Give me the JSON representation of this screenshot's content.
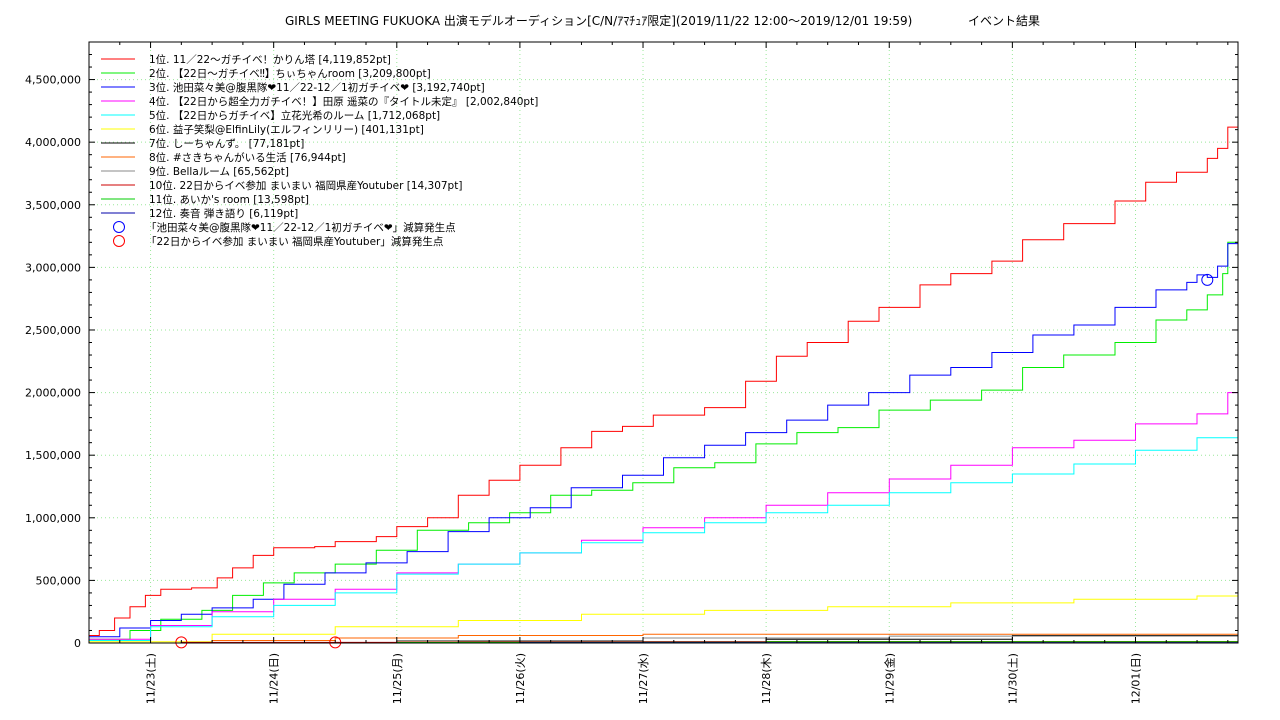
{
  "chart_data": {
    "type": "line",
    "title": "GIRLS MEETING FUKUOKA 出演モデルオーディション[C/N/ｱﾏﾁｭｱ限定](2019/11/22 12:00～2019/12/01 19:59)",
    "subtitle": "イベント結果",
    "xlabel": "",
    "ylabel": "",
    "x_start": "2019-11-22 12:00",
    "x_end": "2019-12-01 19:59",
    "x_ticks": [
      "11/23(土)",
      "11/24(日)",
      "11/25(月)",
      "11/26(火)",
      "11/27(水)",
      "11/28(木)",
      "11/29(金)",
      "11/30(土)",
      "12/01(日)"
    ],
    "ylim": [
      0,
      4800000
    ],
    "y_ticks": [
      "0",
      "500,000",
      "1,000,000",
      "1,500,000",
      "2,000,000",
      "2,500,000",
      "3,000,000",
      "3,500,000",
      "4,000,000",
      "4,500,000"
    ],
    "y_tick_values": [
      0,
      500000,
      1000000,
      1500000,
      2000000,
      2500000,
      3000000,
      3500000,
      4000000,
      4500000
    ],
    "grid": true,
    "legend_position": "top-left",
    "series": [
      {
        "name": "1位. 11／22～ガチイベ！かりん塔 [4,119,852pt]",
        "color": "#ff0000",
        "points": [
          [
            "11/22 12:00",
            60000
          ],
          [
            "11/22 14:00",
            100000
          ],
          [
            "11/22 17:00",
            200000
          ],
          [
            "11/22 20:00",
            290000
          ],
          [
            "11/22 23:00",
            380000
          ],
          [
            "11/23 02:00",
            430000
          ],
          [
            "11/23 08:00",
            440000
          ],
          [
            "11/23 13:00",
            520000
          ],
          [
            "11/23 16:00",
            600000
          ],
          [
            "11/23 20:00",
            700000
          ],
          [
            "11/24 00:00",
            760000
          ],
          [
            "11/24 08:00",
            770000
          ],
          [
            "11/24 12:00",
            810000
          ],
          [
            "11/24 20:00",
            850000
          ],
          [
            "11/25 00:00",
            930000
          ],
          [
            "11/25 06:00",
            1000000
          ],
          [
            "11/25 12:00",
            1180000
          ],
          [
            "11/25 18:00",
            1300000
          ],
          [
            "11/26 00:00",
            1420000
          ],
          [
            "11/26 08:00",
            1560000
          ],
          [
            "11/26 14:00",
            1690000
          ],
          [
            "11/26 20:00",
            1730000
          ],
          [
            "11/27 02:00",
            1820000
          ],
          [
            "11/27 12:00",
            1880000
          ],
          [
            "11/27 20:00",
            2090000
          ],
          [
            "11/28 02:00",
            2290000
          ],
          [
            "11/28 08:00",
            2400000
          ],
          [
            "11/28 16:00",
            2570000
          ],
          [
            "11/28 22:00",
            2680000
          ],
          [
            "11/29 06:00",
            2860000
          ],
          [
            "11/29 12:00",
            2950000
          ],
          [
            "11/29 20:00",
            3050000
          ],
          [
            "11/30 02:00",
            3220000
          ],
          [
            "11/30 10:00",
            3350000
          ],
          [
            "11/30 20:00",
            3530000
          ],
          [
            "12/01 02:00",
            3680000
          ],
          [
            "12/01 08:00",
            3760000
          ],
          [
            "12/01 14:00",
            3870000
          ],
          [
            "12/01 16:00",
            3950000
          ],
          [
            "12/01 18:00",
            4120000
          ],
          [
            "12/01 19:59",
            4119852
          ]
        ]
      },
      {
        "name": "2位. 【22日～ガチイベ‼】ちぃちゃんroom [3,209,800pt]",
        "color": "#00ee00",
        "points": [
          [
            "11/22 12:00",
            30000
          ],
          [
            "11/22 20:00",
            100000
          ],
          [
            "11/23 02:00",
            190000
          ],
          [
            "11/23 10:00",
            260000
          ],
          [
            "11/23 16:00",
            380000
          ],
          [
            "11/23 22:00",
            480000
          ],
          [
            "11/24 04:00",
            560000
          ],
          [
            "11/24 12:00",
            630000
          ],
          [
            "11/24 20:00",
            740000
          ],
          [
            "11/25 04:00",
            900000
          ],
          [
            "11/25 14:00",
            960000
          ],
          [
            "11/25 22:00",
            1040000
          ],
          [
            "11/26 06:00",
            1180000
          ],
          [
            "11/26 14:00",
            1220000
          ],
          [
            "11/26 22:00",
            1280000
          ],
          [
            "11/27 06:00",
            1400000
          ],
          [
            "11/27 14:00",
            1440000
          ],
          [
            "11/27 22:00",
            1590000
          ],
          [
            "11/28 06:00",
            1680000
          ],
          [
            "11/28 14:00",
            1720000
          ],
          [
            "11/28 22:00",
            1860000
          ],
          [
            "11/29 08:00",
            1940000
          ],
          [
            "11/29 18:00",
            2020000
          ],
          [
            "11/30 02:00",
            2200000
          ],
          [
            "11/30 10:00",
            2300000
          ],
          [
            "11/30 20:00",
            2400000
          ],
          [
            "12/01 04:00",
            2580000
          ],
          [
            "12/01 10:00",
            2660000
          ],
          [
            "12/01 14:00",
            2780000
          ],
          [
            "12/01 17:00",
            2950000
          ],
          [
            "12/01 18:00",
            3200000
          ],
          [
            "12/01 19:59",
            3209800
          ]
        ]
      },
      {
        "name": "3位. 池田菜々美@腹黒隊❤11／22-12／1初ガチイベ❤ [3,192,740pt]",
        "color": "#0000ff",
        "points": [
          [
            "11/22 12:00",
            50000
          ],
          [
            "11/22 18:00",
            120000
          ],
          [
            "11/23 00:00",
            180000
          ],
          [
            "11/23 06:00",
            230000
          ],
          [
            "11/23 12:00",
            280000
          ],
          [
            "11/23 20:00",
            350000
          ],
          [
            "11/24 02:00",
            470000
          ],
          [
            "11/24 10:00",
            560000
          ],
          [
            "11/24 18:00",
            640000
          ],
          [
            "11/25 02:00",
            730000
          ],
          [
            "11/25 10:00",
            890000
          ],
          [
            "11/25 18:00",
            1000000
          ],
          [
            "11/26 02:00",
            1080000
          ],
          [
            "11/26 10:00",
            1240000
          ],
          [
            "11/26 20:00",
            1340000
          ],
          [
            "11/27 04:00",
            1480000
          ],
          [
            "11/27 12:00",
            1580000
          ],
          [
            "11/27 20:00",
            1680000
          ],
          [
            "11/28 04:00",
            1780000
          ],
          [
            "11/28 12:00",
            1900000
          ],
          [
            "11/28 20:00",
            2000000
          ],
          [
            "11/29 04:00",
            2140000
          ],
          [
            "11/29 12:00",
            2200000
          ],
          [
            "11/29 20:00",
            2320000
          ],
          [
            "11/30 04:00",
            2460000
          ],
          [
            "11/30 12:00",
            2540000
          ],
          [
            "11/30 20:00",
            2680000
          ],
          [
            "12/01 04:00",
            2820000
          ],
          [
            "12/01 10:00",
            2880000
          ],
          [
            "12/01 12:00",
            2940000
          ],
          [
            "12/01 14:00",
            2920000
          ],
          [
            "12/01 16:00",
            3010000
          ],
          [
            "12/01 18:00",
            3190000
          ],
          [
            "12/01 19:59",
            3192740
          ]
        ]
      },
      {
        "name": "4位. 【22日から超全力ガチイベ！】田原 遥菜の『タイトル未定』 [2,002,840pt]",
        "color": "#ff00ff",
        "points": [
          [
            "11/22 12:00",
            30000
          ],
          [
            "11/23 00:00",
            140000
          ],
          [
            "11/23 12:00",
            250000
          ],
          [
            "11/24 00:00",
            350000
          ],
          [
            "11/24 12:00",
            430000
          ],
          [
            "11/25 00:00",
            560000
          ],
          [
            "11/25 12:00",
            630000
          ],
          [
            "11/26 00:00",
            720000
          ],
          [
            "11/26 12:00",
            820000
          ],
          [
            "11/27 00:00",
            920000
          ],
          [
            "11/27 12:00",
            1000000
          ],
          [
            "11/28 00:00",
            1100000
          ],
          [
            "11/28 12:00",
            1200000
          ],
          [
            "11/29 00:00",
            1310000
          ],
          [
            "11/29 12:00",
            1420000
          ],
          [
            "11/30 00:00",
            1560000
          ],
          [
            "11/30 12:00",
            1620000
          ],
          [
            "12/01 00:00",
            1750000
          ],
          [
            "12/01 12:00",
            1830000
          ],
          [
            "12/01 18:00",
            2000000
          ],
          [
            "12/01 19:59",
            2002840
          ]
        ]
      },
      {
        "name": "5位. 【22日からガチイベ】立花光希のルーム [1,712,068pt]",
        "color": "#00ffff",
        "points": [
          [
            "11/22 12:00",
            20000
          ],
          [
            "11/23 00:00",
            130000
          ],
          [
            "11/23 12:00",
            210000
          ],
          [
            "11/24 00:00",
            300000
          ],
          [
            "11/24 12:00",
            400000
          ],
          [
            "11/25 00:00",
            550000
          ],
          [
            "11/25 12:00",
            630000
          ],
          [
            "11/26 00:00",
            720000
          ],
          [
            "11/26 12:00",
            800000
          ],
          [
            "11/27 00:00",
            880000
          ],
          [
            "11/27 12:00",
            960000
          ],
          [
            "11/28 00:00",
            1040000
          ],
          [
            "11/28 12:00",
            1100000
          ],
          [
            "11/29 00:00",
            1200000
          ],
          [
            "11/29 12:00",
            1280000
          ],
          [
            "11/30 00:00",
            1350000
          ],
          [
            "11/30 12:00",
            1430000
          ],
          [
            "12/01 00:00",
            1540000
          ],
          [
            "12/01 12:00",
            1640000
          ],
          [
            "12/01 19:59",
            1712068
          ]
        ]
      },
      {
        "name": "6位. 益子笑梨@ElfinLily(エルフィンリリー) [401,131pt]",
        "color": "#ffff00",
        "points": [
          [
            "11/22 12:00",
            10000
          ],
          [
            "11/23 12:00",
            70000
          ],
          [
            "11/24 12:00",
            130000
          ],
          [
            "11/25 12:00",
            180000
          ],
          [
            "11/26 12:00",
            230000
          ],
          [
            "11/27 12:00",
            260000
          ],
          [
            "11/28 12:00",
            290000
          ],
          [
            "11/29 12:00",
            320000
          ],
          [
            "11/30 12:00",
            350000
          ],
          [
            "12/01 12:00",
            375000
          ],
          [
            "12/01 19:59",
            401131
          ]
        ]
      },
      {
        "name": "7位. しーちゃんず。 [77,181pt]",
        "color": "#000000",
        "points": [
          [
            "11/22 12:00",
            0
          ],
          [
            "11/25 12:00",
            10000
          ],
          [
            "11/28 00:00",
            30000
          ],
          [
            "11/30 00:00",
            60000
          ],
          [
            "12/01 19:59",
            77181
          ]
        ]
      },
      {
        "name": "8位. #さきちゃんがいる生活 [76,944pt]",
        "color": "#ff6600",
        "points": [
          [
            "11/22 12:00",
            0
          ],
          [
            "11/23 12:00",
            20000
          ],
          [
            "11/24 12:00",
            40000
          ],
          [
            "11/25 12:00",
            60000
          ],
          [
            "11/27 00:00",
            70000
          ],
          [
            "12/01 19:59",
            76944
          ]
        ]
      },
      {
        "name": "9位. Bellaルーム [65,562pt]",
        "color": "#888888",
        "points": [
          [
            "11/22 12:00",
            0
          ],
          [
            "11/25 00:00",
            20000
          ],
          [
            "11/27 00:00",
            40000
          ],
          [
            "11/29 00:00",
            55000
          ],
          [
            "12/01 19:59",
            65562
          ]
        ]
      },
      {
        "name": "10位. 22日からイベ参加 まいまい 福岡県産Youtuber [14,307pt]",
        "color": "#cc0000",
        "points": [
          [
            "11/22 12:00",
            0
          ],
          [
            "11/23 06:00",
            5000
          ],
          [
            "11/25 00:00",
            9000
          ],
          [
            "11/28 00:00",
            12000
          ],
          [
            "12/01 19:59",
            14307
          ]
        ]
      },
      {
        "name": "11位. あいか's room [13,598pt]",
        "color": "#00cc00",
        "points": [
          [
            "11/22 12:00",
            0
          ],
          [
            "11/25 00:00",
            5000
          ],
          [
            "11/28 00:00",
            10000
          ],
          [
            "12/01 19:59",
            13598
          ]
        ]
      },
      {
        "name": "12位. 奏音 弾き語り [6,119pt]",
        "color": "#0000aa",
        "points": [
          [
            "11/22 12:00",
            0
          ],
          [
            "11/26 00:00",
            3000
          ],
          [
            "12/01 19:59",
            6119
          ]
        ]
      }
    ],
    "markers": [
      {
        "label": "「池田菜々美@腹黒隊❤11／22-12／1初ガチイベ❤」減算発生点",
        "color": "#0000ff",
        "points": [
          [
            "12/01 14:00",
            2900000
          ]
        ]
      },
      {
        "label": "「22日からイベ参加 まいまい 福岡県産Youtuber」減算発生点",
        "color": "#ff0000",
        "points": [
          [
            "11/23 06:00",
            5000
          ],
          [
            "11/24 12:00",
            5000
          ]
        ]
      }
    ]
  }
}
